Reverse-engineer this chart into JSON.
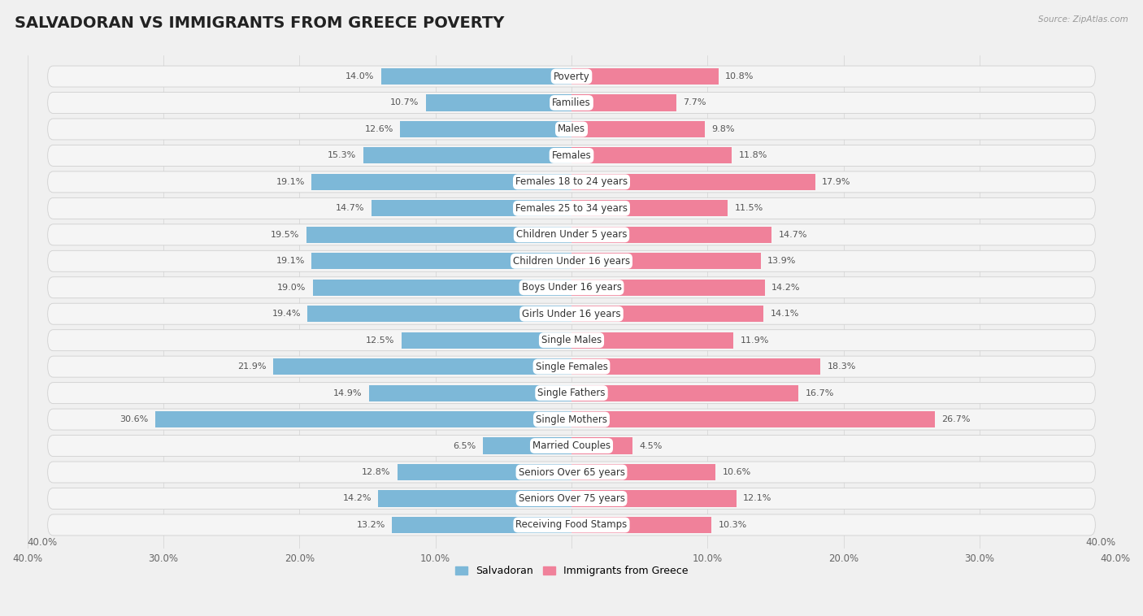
{
  "title": "SALVADORAN VS IMMIGRANTS FROM GREECE POVERTY",
  "source": "Source: ZipAtlas.com",
  "categories": [
    "Poverty",
    "Families",
    "Males",
    "Females",
    "Females 18 to 24 years",
    "Females 25 to 34 years",
    "Children Under 5 years",
    "Children Under 16 years",
    "Boys Under 16 years",
    "Girls Under 16 years",
    "Single Males",
    "Single Females",
    "Single Fathers",
    "Single Mothers",
    "Married Couples",
    "Seniors Over 65 years",
    "Seniors Over 75 years",
    "Receiving Food Stamps"
  ],
  "salvadoran": [
    14.0,
    10.7,
    12.6,
    15.3,
    19.1,
    14.7,
    19.5,
    19.1,
    19.0,
    19.4,
    12.5,
    21.9,
    14.9,
    30.6,
    6.5,
    12.8,
    14.2,
    13.2
  ],
  "greece": [
    10.8,
    7.7,
    9.8,
    11.8,
    17.9,
    11.5,
    14.7,
    13.9,
    14.2,
    14.1,
    11.9,
    18.3,
    16.7,
    26.7,
    4.5,
    10.6,
    12.1,
    10.3
  ],
  "salvadoran_color": "#7db8d8",
  "greece_color": "#f0819a",
  "salvadoran_label": "Salvadoran",
  "greece_label": "Immigrants from Greece",
  "axis_limit": 40.0,
  "background_color": "#f0f0f0",
  "row_bg_color": "#e8e8e8",
  "bar_card_color": "#f5f5f5",
  "title_fontsize": 14,
  "label_fontsize": 8.5,
  "value_fontsize": 8,
  "axis_label_fontsize": 8.5
}
